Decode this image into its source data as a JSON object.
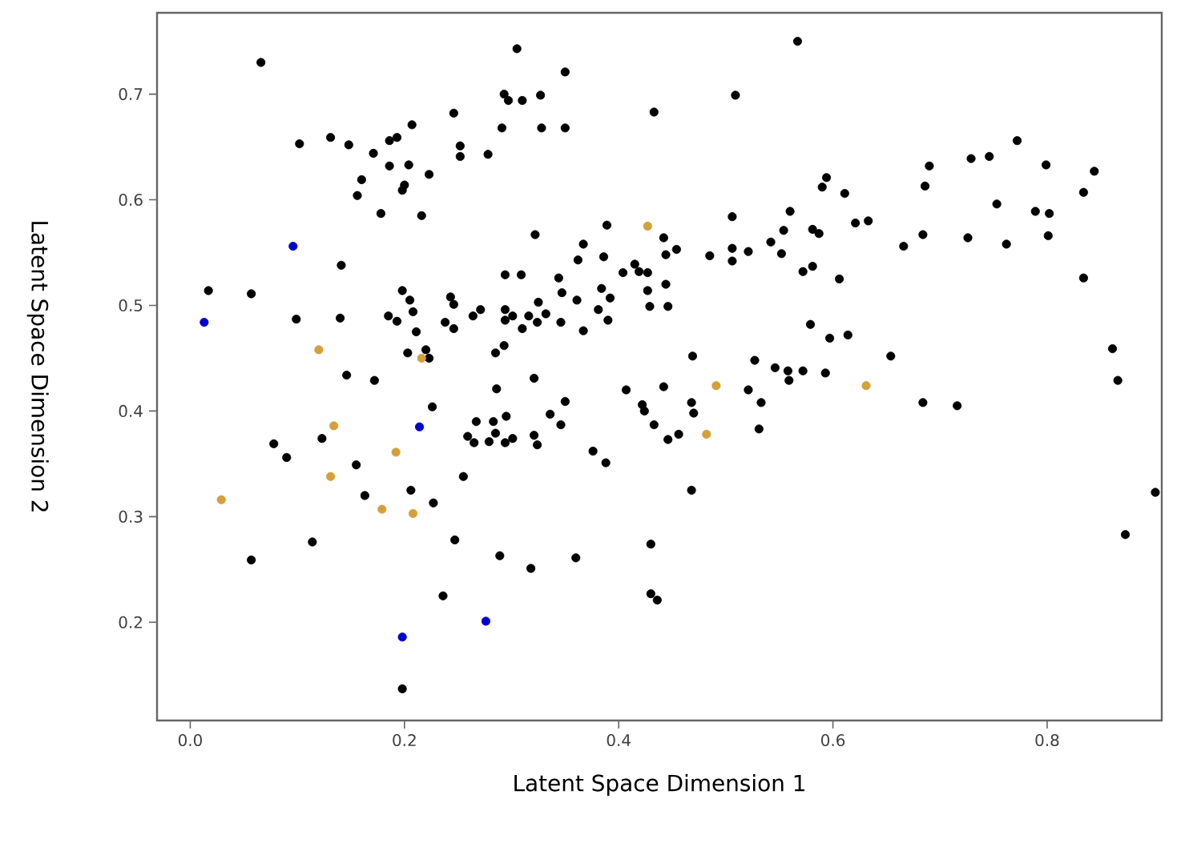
{
  "chart_data": {
    "type": "scatter",
    "xlabel": "Latent Space Dimension 1",
    "ylabel": "Latent Space Dimension 2",
    "marker": "circle",
    "xlim": [
      -0.031,
      0.907
    ],
    "ylim": [
      0.107,
      0.777
    ],
    "xticks": [
      {
        "value": 0,
        "label": "0.0"
      },
      0.2,
      0.4,
      0.6,
      0.8
    ],
    "yticks": [
      0.2,
      0.3,
      0.4,
      0.5,
      0.6,
      0.7
    ],
    "series": [
      {
        "color": "#000000",
        "x": [
          0.066,
          0.305,
          0.35,
          0.293,
          0.297,
          0.31,
          0.327,
          0.246,
          0.433,
          0.207,
          0.291,
          0.328,
          0.35,
          0.102,
          0.131,
          0.148,
          0.186,
          0.193,
          0.171,
          0.252,
          0.252,
          0.278,
          0.186,
          0.204,
          0.223,
          0.16,
          0.2,
          0.198,
          0.156,
          0.178,
          0.216,
          0.322,
          0.389,
          0.442,
          0.367,
          0.141,
          0.362,
          0.386,
          0.294,
          0.309,
          0.344,
          0.404,
          0.415,
          0.419,
          0.427,
          0.444,
          0.444,
          0.017,
          0.057,
          0.198,
          0.243,
          0.427,
          0.347,
          0.384,
          0.392,
          0.361,
          0.325,
          0.205,
          0.246,
          0.429,
          0.446,
          0.099,
          0.14,
          0.185,
          0.193,
          0.208,
          0.211,
          0.238,
          0.246,
          0.264,
          0.271,
          0.294,
          0.294,
          0.301,
          0.316,
          0.324,
          0.332,
          0.31,
          0.346,
          0.367,
          0.381,
          0.39,
          0.203,
          0.22,
          0.223,
          0.285,
          0.293,
          0.567,
          0.509,
          0.772,
          0.729,
          0.746,
          0.69,
          0.799,
          0.844,
          0.686,
          0.834,
          0.594,
          0.59,
          0.611,
          0.753,
          0.789,
          0.802,
          0.506,
          0.56,
          0.621,
          0.633,
          0.554,
          0.581,
          0.587,
          0.684,
          0.726,
          0.801,
          0.762,
          0.666,
          0.542,
          0.506,
          0.521,
          0.485,
          0.506,
          0.552,
          0.454,
          0.572,
          0.581,
          0.606,
          0.834,
          0.579,
          0.597,
          0.614,
          0.469,
          0.527,
          0.654,
          0.861,
          0.546,
          0.558,
          0.572,
          0.593,
          0.146,
          0.172,
          0.286,
          0.321,
          0.407,
          0.442,
          0.226,
          0.422,
          0.424,
          0.433,
          0.446,
          0.35,
          0.336,
          0.346,
          0.267,
          0.295,
          0.283,
          0.259,
          0.265,
          0.279,
          0.285,
          0.294,
          0.301,
          0.321,
          0.324,
          0.376,
          0.388,
          0.078,
          0.09,
          0.123,
          0.155,
          0.163,
          0.206,
          0.227,
          0.255,
          0.114,
          0.057,
          0.247,
          0.289,
          0.318,
          0.36,
          0.236,
          0.198,
          0.43,
          0.43,
          0.436,
          0.521,
          0.533,
          0.559,
          0.468,
          0.47,
          0.456,
          0.531,
          0.684,
          0.716,
          0.866,
          0.468,
          0.901,
          0.873
        ],
        "values": [
          0.73,
          0.743,
          0.721,
          0.7,
          0.694,
          0.694,
          0.699,
          0.682,
          0.683,
          0.671,
          0.668,
          0.668,
          0.668,
          0.653,
          0.659,
          0.652,
          0.656,
          0.659,
          0.644,
          0.651,
          0.641,
          0.643,
          0.632,
          0.633,
          0.624,
          0.619,
          0.614,
          0.609,
          0.604,
          0.587,
          0.585,
          0.567,
          0.576,
          0.564,
          0.558,
          0.538,
          0.543,
          0.546,
          0.529,
          0.529,
          0.526,
          0.531,
          0.539,
          0.532,
          0.531,
          0.548,
          0.52,
          0.514,
          0.511,
          0.514,
          0.508,
          0.514,
          0.512,
          0.516,
          0.507,
          0.505,
          0.503,
          0.505,
          0.501,
          0.499,
          0.499,
          0.487,
          0.488,
          0.49,
          0.485,
          0.494,
          0.475,
          0.484,
          0.478,
          0.49,
          0.496,
          0.496,
          0.486,
          0.49,
          0.49,
          0.484,
          0.492,
          0.478,
          0.484,
          0.476,
          0.496,
          0.486,
          0.455,
          0.458,
          0.45,
          0.455,
          0.462,
          0.75,
          0.699,
          0.656,
          0.639,
          0.641,
          0.632,
          0.633,
          0.627,
          0.613,
          0.607,
          0.621,
          0.612,
          0.606,
          0.596,
          0.589,
          0.587,
          0.584,
          0.589,
          0.578,
          0.58,
          0.571,
          0.572,
          0.568,
          0.567,
          0.564,
          0.566,
          0.558,
          0.556,
          0.56,
          0.554,
          0.551,
          0.547,
          0.542,
          0.549,
          0.553,
          0.532,
          0.537,
          0.525,
          0.526,
          0.482,
          0.469,
          0.472,
          0.452,
          0.448,
          0.452,
          0.459,
          0.441,
          0.438,
          0.438,
          0.436,
          0.434,
          0.429,
          0.421,
          0.431,
          0.42,
          0.423,
          0.404,
          0.406,
          0.4,
          0.387,
          0.373,
          0.409,
          0.397,
          0.387,
          0.39,
          0.395,
          0.39,
          0.376,
          0.37,
          0.371,
          0.379,
          0.37,
          0.374,
          0.377,
          0.368,
          0.362,
          0.351,
          0.369,
          0.356,
          0.374,
          0.349,
          0.32,
          0.325,
          0.313,
          0.338,
          0.276,
          0.259,
          0.278,
          0.263,
          0.251,
          0.261,
          0.225,
          0.137,
          0.274,
          0.227,
          0.221,
          0.42,
          0.408,
          0.429,
          0.408,
          0.398,
          0.378,
          0.383,
          0.408,
          0.405,
          0.429,
          0.325,
          0.323,
          0.283
        ]
      },
      {
        "color": "#d4a03a",
        "x": [
          0.12,
          0.216,
          0.427,
          0.134,
          0.192,
          0.131,
          0.029,
          0.179,
          0.208,
          0.491,
          0.631,
          0.482
        ],
        "values": [
          0.458,
          0.45,
          0.575,
          0.386,
          0.361,
          0.338,
          0.316,
          0.307,
          0.303,
          0.424,
          0.424,
          0.378
        ]
      },
      {
        "color": "#0000cc",
        "x": [
          0.013,
          0.096,
          0.214,
          0.198,
          0.276
        ],
        "values": [
          0.484,
          0.556,
          0.385,
          0.186,
          0.201
        ]
      }
    ]
  }
}
